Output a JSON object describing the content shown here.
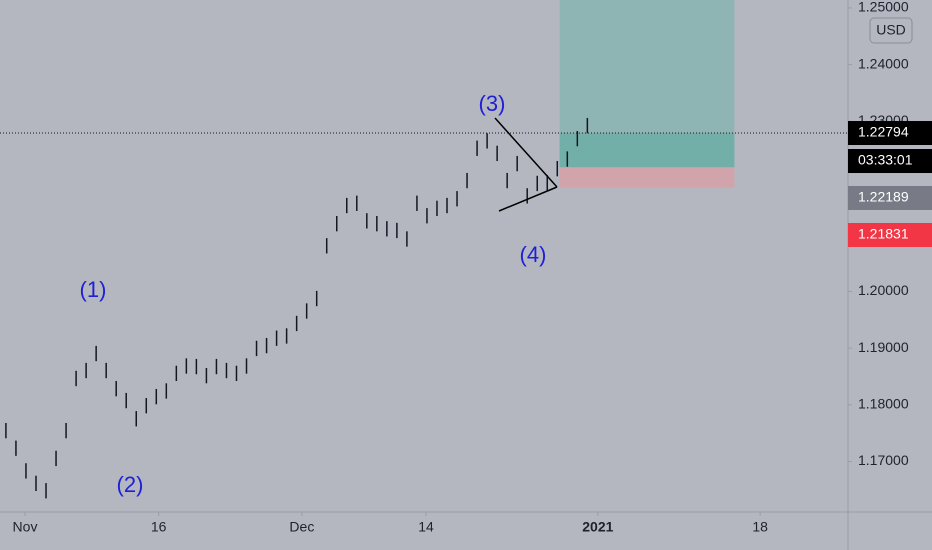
{
  "chart_data": {
    "type": "ohlc",
    "currency": "USD",
    "x": [
      0,
      1.05,
      2.1,
      3.15,
      4.2,
      5.25,
      6.3,
      7.35,
      8.4,
      9.45,
      10.5,
      11.55,
      12.6,
      13.65,
      14.7,
      15.75,
      16.8,
      17.85,
      18.9,
      19.95,
      21,
      22.05,
      23.1,
      24.15,
      25.2,
      26.25,
      27.3,
      28.35,
      29.4,
      30.45,
      31.5,
      32.55,
      33.6,
      34.65,
      35.7,
      36.75,
      37.8,
      38.85,
      39.9,
      40.95,
      42,
      43.05,
      44.1,
      45.15,
      46.2,
      47.25,
      48.3,
      49.35,
      50.4,
      51.45,
      52.5,
      53.55,
      54.6,
      55.65,
      56.7,
      57.75,
      58.8,
      59.85,
      60.9
    ],
    "series": [
      {
        "color": "#131722",
        "high": [
          1.1768,
          1.1737,
          1.1697,
          1.1675,
          1.1662,
          1.1719,
          1.1768,
          1.186,
          1.1874,
          1.1904,
          1.1874,
          1.1842,
          1.1821,
          1.1789,
          1.1812,
          1.1828,
          1.1838,
          1.1869,
          1.1882,
          1.1881,
          1.1865,
          1.1881,
          1.1874,
          1.1869,
          1.1882,
          1.1913,
          1.1918,
          1.1931,
          1.1935,
          1.1957,
          1.1979,
          1.2001,
          1.2094,
          1.2133,
          1.2165,
          1.2169,
          1.2138,
          1.2133,
          1.2124,
          1.2121,
          1.2106,
          1.2169,
          1.2147,
          1.216,
          1.2165,
          1.2177,
          1.2209,
          1.2266,
          1.2279,
          1.2257,
          1.2209,
          1.2239,
          1.2182,
          1.2204,
          1.2205,
          1.223,
          1.2247,
          1.2283,
          1.2306
        ],
        "low": [
          1.1741,
          1.171,
          1.167,
          1.1648,
          1.1635,
          1.1692,
          1.1741,
          1.1833,
          1.1847,
          1.1877,
          1.1847,
          1.1815,
          1.1794,
          1.1762,
          1.1785,
          1.1801,
          1.1811,
          1.1842,
          1.1855,
          1.1854,
          1.1838,
          1.1854,
          1.1847,
          1.1842,
          1.1855,
          1.1886,
          1.1891,
          1.1904,
          1.1908,
          1.193,
          1.1952,
          1.1974,
          1.2067,
          1.2106,
          1.2138,
          1.2142,
          1.2111,
          1.2106,
          1.2097,
          1.2094,
          1.2079,
          1.2142,
          1.212,
          1.2133,
          1.2138,
          1.215,
          1.2182,
          1.2239,
          1.2252,
          1.223,
          1.2182,
          1.2212,
          1.2155,
          1.2177,
          1.2178,
          1.2203,
          1.222,
          1.2256,
          1.2279
        ]
      }
    ],
    "xlim": [
      -0.62,
      88.2
    ],
    "xticks": [
      {
        "value": 2,
        "label": "Nov"
      },
      16,
      {
        "value": 31,
        "label": "Dec"
      },
      {
        "value": 44,
        "label": "14"
      },
      {
        "value": 62,
        "label": "2021"
      },
      {
        "value": 79,
        "label": "18"
      }
    ],
    "ylim": [
      1.1611,
      1.2514
    ],
    "yticks": [
      {
        "value": 1.25,
        "label": "1.25000"
      },
      {
        "value": 1.24,
        "label": "1.24000"
      },
      {
        "value": 1.23,
        "label": "1.23000"
      },
      {
        "value": 1.2,
        "label": "1.20000"
      },
      {
        "value": 1.19,
        "label": "1.19000"
      },
      {
        "value": 1.18,
        "label": "1.18000"
      },
      {
        "value": 1.17,
        "label": "1.17000"
      }
    ],
    "last_price": 1.22794,
    "countdown": "03:33:01",
    "position": {
      "x": [
        58,
        76.3
      ],
      "entry": 1.22189,
      "stop": 1.21831,
      "target": 1.2514
    },
    "annotations": [
      "(1)",
      "(2)",
      "(3)",
      "(4)"
    ]
  }
}
